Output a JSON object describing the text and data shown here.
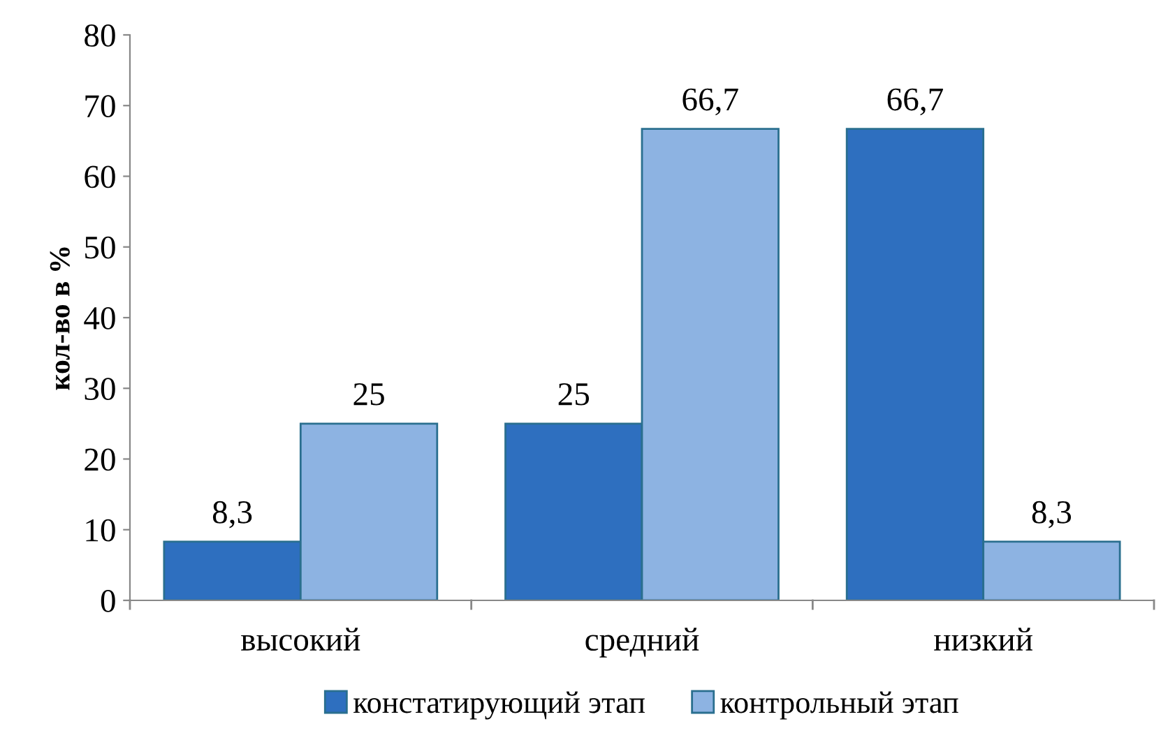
{
  "chart_data": {
    "type": "bar",
    "ylabel": "кол-во в %",
    "categories": [
      "высокий",
      "средний",
      "низкий"
    ],
    "series": [
      {
        "name": "констатирующий этап",
        "color": "#2e6fbf",
        "values": [
          8.3,
          25,
          66.7
        ],
        "value_labels": [
          "8,3",
          "25",
          "66,7"
        ]
      },
      {
        "name": "контрольный этап",
        "color": "#8db3e2",
        "values": [
          25,
          66.7,
          8.3
        ],
        "value_labels": [
          "25",
          "66,7",
          "8,3"
        ]
      }
    ],
    "ylim": [
      0,
      80
    ],
    "yticks": [
      0,
      10,
      20,
      30,
      40,
      50,
      60,
      70,
      80
    ],
    "grid": false,
    "legend": "bottom"
  }
}
